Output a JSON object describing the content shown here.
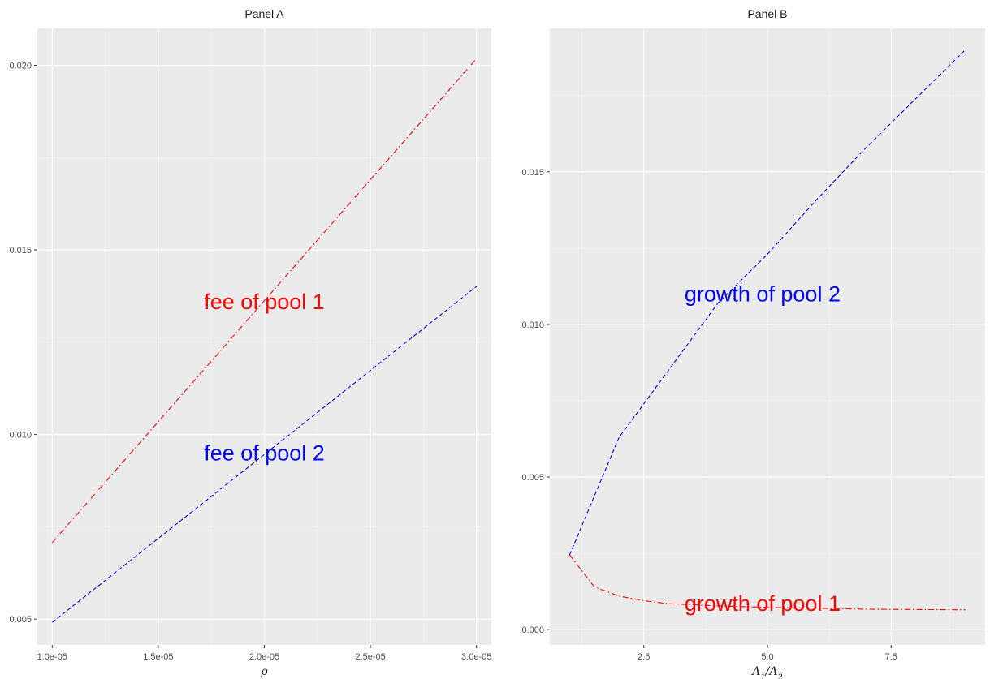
{
  "chart_data": [
    {
      "type": "line",
      "title": "Panel A",
      "xlabel": "ρ",
      "ylabel": "",
      "xlim": [
        9.3e-06,
        3.07e-05
      ],
      "ylim": [
        0.0043,
        0.021
      ],
      "x_ticks": [
        1e-05,
        1.5e-05,
        2e-05,
        2.5e-05,
        3e-05
      ],
      "x_tick_labels": [
        "1.0e-05",
        "1.5e-05",
        "2.0e-05",
        "2.5e-05",
        "3.0e-05"
      ],
      "y_ticks": [
        0.005,
        0.01,
        0.015,
        0.02
      ],
      "y_tick_labels": [
        "0.005",
        "0.010",
        "0.015",
        "0.020"
      ],
      "grid": true,
      "legend": "none",
      "series": [
        {
          "x": [
            1e-05,
            3e-05
          ],
          "values": [
            0.00707,
            0.02018
          ],
          "color": "#ff0000",
          "linetype": "dotdash"
        },
        {
          "x": [
            1e-05,
            3e-05
          ],
          "values": [
            0.00491,
            0.01401
          ],
          "color": "#0000ff",
          "linetype": "dashed"
        }
      ],
      "annotations": [
        {
          "text": "fee of pool 1",
          "x": 2e-05,
          "y": 0.0136,
          "color": "#ff0000"
        },
        {
          "text": "fee of pool 2",
          "x": 2e-05,
          "y": 0.0095,
          "color": "#0000ff"
        }
      ]
    },
    {
      "type": "line",
      "title": "Panel B",
      "xlabel": "Λ1/Λ2",
      "ylabel": "",
      "xlim": [
        0.6,
        9.4
      ],
      "ylim": [
        -0.0005,
        0.0197
      ],
      "x_ticks": [
        2.5,
        5.0,
        7.5
      ],
      "x_tick_labels": [
        "2.5",
        "5.0",
        "7.5"
      ],
      "y_ticks": [
        0.0,
        0.005,
        0.01,
        0.015
      ],
      "y_tick_labels": [
        "0.000",
        "0.005",
        "0.010",
        "0.015"
      ],
      "grid": true,
      "legend": "none",
      "series": [
        {
          "x": [
            1,
            2,
            3,
            4,
            5,
            6,
            7,
            8,
            9
          ],
          "values": [
            0.00245,
            0.0063,
            0.0085,
            0.0107,
            0.0123,
            0.0141,
            0.0158,
            0.0174,
            0.019
          ],
          "color": "#0000ff",
          "linetype": "dashed"
        },
        {
          "x": [
            1,
            1.5,
            2,
            2.5,
            3,
            4,
            5,
            6,
            7,
            8,
            9
          ],
          "values": [
            0.00245,
            0.0014,
            0.0011,
            0.00095,
            0.00085,
            0.00078,
            0.00073,
            0.0007,
            0.00067,
            0.00066,
            0.00065
          ],
          "color": "#ff0000",
          "linetype": "dotdash"
        }
      ],
      "annotations": [
        {
          "text": "growth of pool 2",
          "x": 4.9,
          "y": 0.011,
          "color": "#0000ff"
        },
        {
          "text": "growth of pool 1",
          "x": 4.9,
          "y": 0.00085,
          "color": "#ff0000"
        }
      ]
    }
  ]
}
